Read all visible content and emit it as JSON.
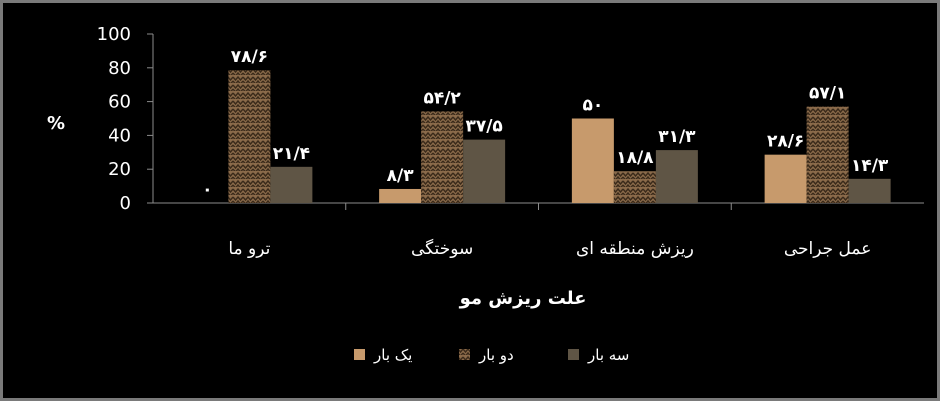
{
  "chart_data": {
    "type": "bar",
    "categories": [
      "ترو ما",
      "سوختگی",
      "ریزش منطقه ای",
      "عمل جراحی"
    ],
    "series": [
      {
        "name": "یک بار",
        "values": [
          0,
          8.3,
          50,
          28.6
        ],
        "labels": [
          "۰",
          "۸/۳",
          "۵۰",
          "۲۸/۶"
        ],
        "color": "#c79a6c",
        "pattern": "solid"
      },
      {
        "name": "دو بار",
        "values": [
          78.6,
          54.2,
          18.8,
          57.1
        ],
        "labels": [
          "۷۸/۶",
          "۵۴/۲",
          "۱۸/۸",
          "۵۷/۱"
        ],
        "color": "#9b7b5b",
        "pattern": "zigzag"
      },
      {
        "name": "سه بار",
        "values": [
          21.4,
          37.5,
          31.3,
          14.3
        ],
        "labels": [
          "۲۱/۴",
          "۳۷/۵",
          "۳۱/۳",
          "۱۴/۳"
        ],
        "color": "#5f5545",
        "pattern": "solid"
      }
    ],
    "ylabel": "%",
    "xlabel": "علت ریزش مو",
    "ylim": [
      0,
      100
    ],
    "yticks": [
      0,
      20,
      40,
      60,
      80,
      100
    ],
    "grid": false,
    "legend_position": "bottom",
    "background": "#000000",
    "text_color": "#ffffff"
  }
}
